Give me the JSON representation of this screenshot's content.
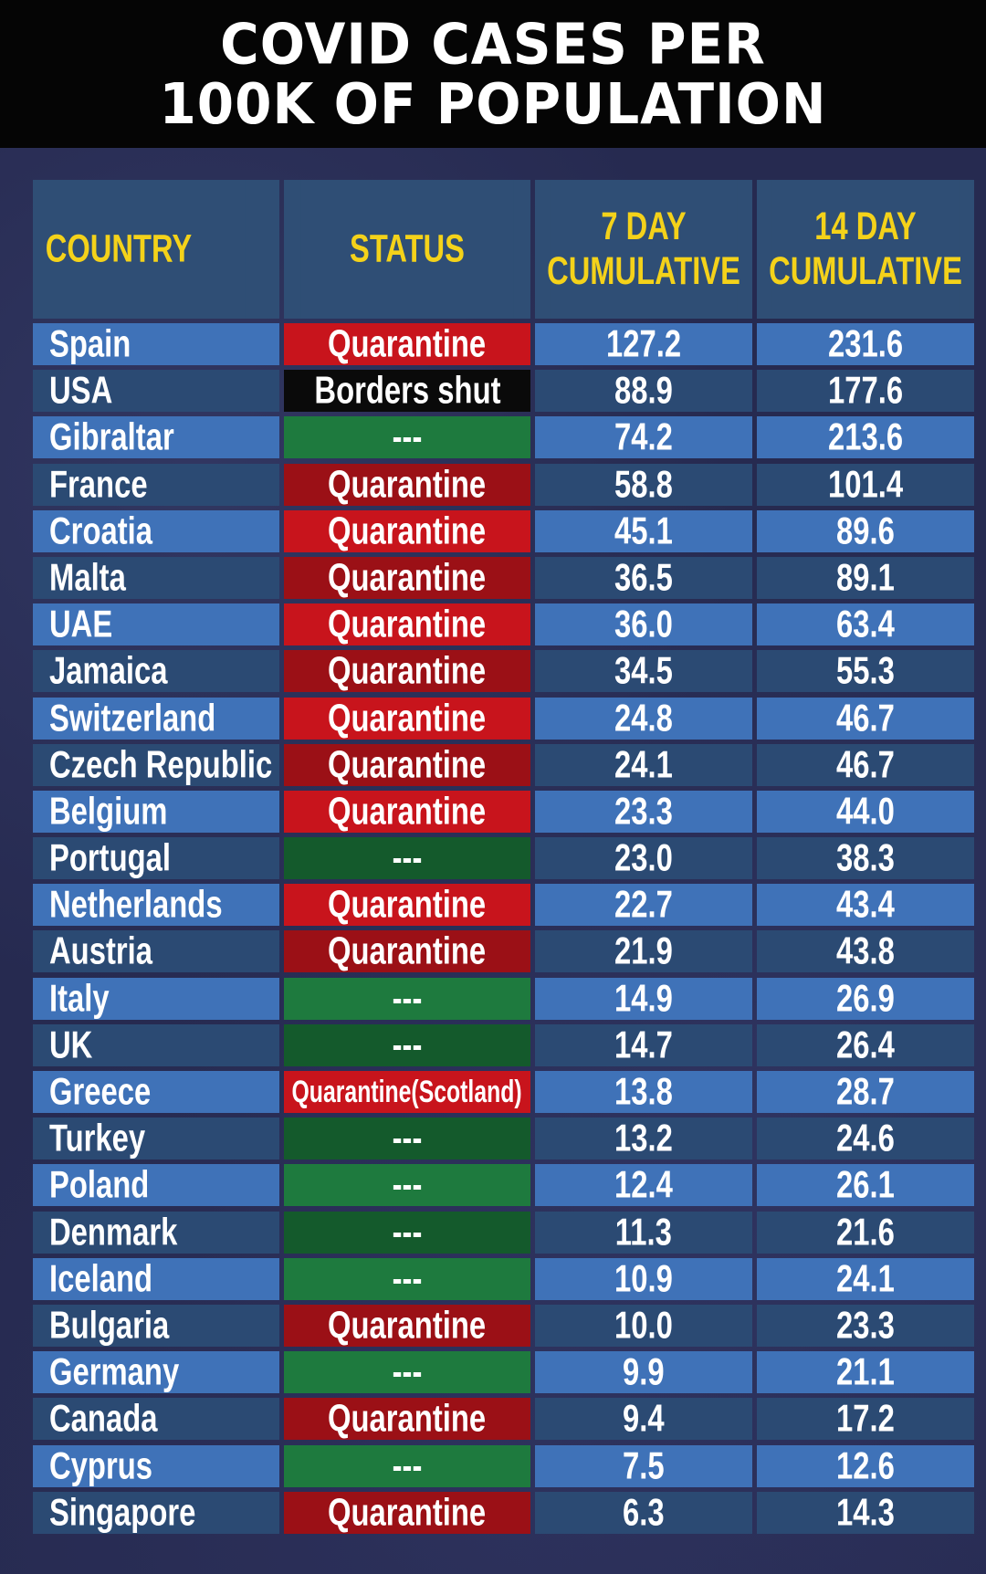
{
  "title": "COVID CASES PER\n100K OF POPULATION",
  "colors": {
    "title_bar": "#050505",
    "header_text": "#f4d21a",
    "header_bg": "#2f4e75",
    "row_light": "#3f72b8",
    "row_dark": "#2b4a73",
    "quarantine_red": "#c8141c",
    "quarantine_dark_red": "#9b1016",
    "open_green": "#1e7a3e",
    "open_dark_green": "#145a2c",
    "borders_shut_black": "#0a0a0a"
  },
  "chart_data": {
    "type": "table",
    "title": "COVID CASES PER\n100K OF POPULATION",
    "columns": [
      "COUNTRY",
      "STATUS",
      "7 DAY\nCUMULATIVE",
      "14 DAY\nCUMULATIVE"
    ],
    "rows": [
      {
        "country": "Spain",
        "status": "Quarantine",
        "status_color": "red",
        "day7": "127.2",
        "day14": "231.6"
      },
      {
        "country": "USA",
        "status": "Borders shut",
        "status_color": "black",
        "day7": "88.9",
        "day14": "177.6"
      },
      {
        "country": "Gibraltar",
        "status": "---",
        "status_color": "green",
        "day7": "74.2",
        "day14": "213.6"
      },
      {
        "country": "France",
        "status": "Quarantine",
        "status_color": "darkred",
        "day7": "58.8",
        "day14": "101.4"
      },
      {
        "country": "Croatia",
        "status": "Quarantine",
        "status_color": "red",
        "day7": "45.1",
        "day14": "89.6"
      },
      {
        "country": "Malta",
        "status": "Quarantine",
        "status_color": "darkred",
        "day7": "36.5",
        "day14": "89.1"
      },
      {
        "country": "UAE",
        "status": "Quarantine",
        "status_color": "red",
        "day7": "36.0",
        "day14": "63.4"
      },
      {
        "country": "Jamaica",
        "status": "Quarantine",
        "status_color": "darkred",
        "day7": "34.5",
        "day14": "55.3"
      },
      {
        "country": "Switzerland",
        "status": "Quarantine",
        "status_color": "red",
        "day7": "24.8",
        "day14": "46.7"
      },
      {
        "country": "Czech Republic",
        "status": "Quarantine",
        "status_color": "darkred",
        "day7": "24.1",
        "day14": "46.7"
      },
      {
        "country": "Belgium",
        "status": "Quarantine",
        "status_color": "red",
        "day7": "23.3",
        "day14": "44.0"
      },
      {
        "country": "Portugal",
        "status": "---",
        "status_color": "darkgreen",
        "day7": "23.0",
        "day14": "38.3"
      },
      {
        "country": "Netherlands",
        "status": "Quarantine",
        "status_color": "red",
        "day7": "22.7",
        "day14": "43.4"
      },
      {
        "country": "Austria",
        "status": "Quarantine",
        "status_color": "darkred",
        "day7": "21.9",
        "day14": "43.8"
      },
      {
        "country": "Italy",
        "status": "---",
        "status_color": "green",
        "day7": "14.9",
        "day14": "26.9"
      },
      {
        "country": "UK",
        "status": "---",
        "status_color": "darkgreen",
        "day7": "14.7",
        "day14": "26.4"
      },
      {
        "country": "Greece",
        "status": "Quarantine(Scotland)",
        "status_color": "red",
        "day7": "13.8",
        "day14": "28.7"
      },
      {
        "country": "Turkey",
        "status": "---",
        "status_color": "darkgreen",
        "day7": "13.2",
        "day14": "24.6"
      },
      {
        "country": "Poland",
        "status": "---",
        "status_color": "green",
        "day7": "12.4",
        "day14": "26.1"
      },
      {
        "country": "Denmark",
        "status": "---",
        "status_color": "darkgreen",
        "day7": "11.3",
        "day14": "21.6"
      },
      {
        "country": "Iceland",
        "status": "---",
        "status_color": "green",
        "day7": "10.9",
        "day14": "24.1"
      },
      {
        "country": "Bulgaria",
        "status": "Quarantine",
        "status_color": "darkred",
        "day7": "10.0",
        "day14": "23.3"
      },
      {
        "country": "Germany",
        "status": "---",
        "status_color": "green",
        "day7": "9.9",
        "day14": "21.1"
      },
      {
        "country": "Canada",
        "status": "Quarantine",
        "status_color": "darkred",
        "day7": "9.4",
        "day14": "17.2"
      },
      {
        "country": "Cyprus",
        "status": "---",
        "status_color": "green",
        "day7": "7.5",
        "day14": "12.6"
      },
      {
        "country": "Singapore",
        "status": "Quarantine",
        "status_color": "darkred",
        "day7": "6.3",
        "day14": "14.3"
      }
    ]
  }
}
